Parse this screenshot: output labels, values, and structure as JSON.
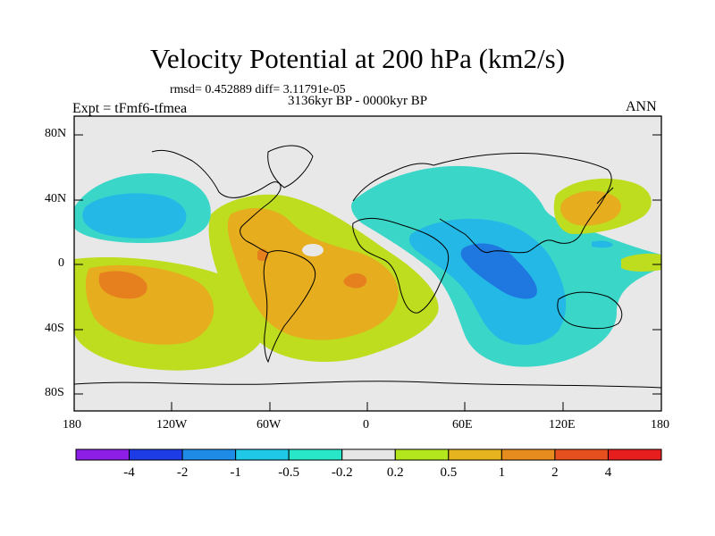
{
  "title": "Velocity Potential at 200 hPa (km2/s)",
  "stats_line": "rmsd= 0.452889  diff= 3.11791e-05",
  "period": "3136kyr BP - 0000kyr BP",
  "experiment": "Expt = tFmf6-tfmea",
  "season": "ANN",
  "latitude_labels": [
    "80N",
    "40N",
    "0",
    "40S",
    "80S"
  ],
  "longitude_labels": [
    "180",
    "120W",
    "60W",
    "0",
    "60E",
    "120E",
    "180"
  ],
  "colorbar": {
    "colors": [
      "#8c1ee6",
      "#1e3ce6",
      "#1e8ce6",
      "#1ec8e6",
      "#28e6c8",
      "#e6e6e6",
      "#b4e61e",
      "#e6b41e",
      "#e68c1e",
      "#e6501e",
      "#e61e1e"
    ],
    "labels": [
      "-4",
      "-2",
      "-1",
      "-0.5",
      "-0.2",
      "0.2",
      "0.5",
      "1",
      "2",
      "4"
    ]
  },
  "field_colors": {
    "background": "#e8e8e8",
    "neg_weak": "#3ad6c8",
    "neg_mid": "#24b8e6",
    "neg_strong": "#1e78e0",
    "pos_weak": "#bedd1e",
    "pos_mid": "#e6ad1e",
    "pos_strong": "#e6801e"
  }
}
